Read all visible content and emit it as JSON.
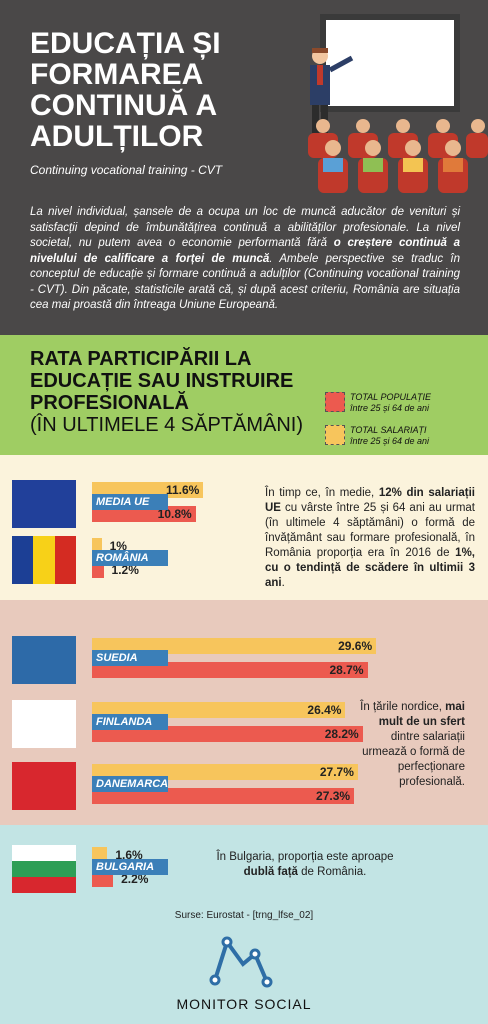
{
  "header": {
    "title_lines": [
      "EDUCAȚIA ȘI",
      "FORMAREA",
      "CONTINUĂ A",
      "ADULȚILOR"
    ],
    "subtitle": "Continuing vocational training - CVT",
    "intro": [
      {
        "text": "La nivel individual, șansele de a ocupa un loc de muncă aducător de venituri și satisfacții depind de îmbunătățirea continuă a abilităților profesionale. La nivel societal, nu putem avea o economie performantă fără ",
        "bold": false
      },
      {
        "text": "o creștere continuă a nivelului de calificare a forței de muncă",
        "bold": true
      },
      {
        "text": ". Ambele perspective se traduc în conceptul de educație și formare continuă a adulților (Continuing vocational training - CVT). Din păcate, statisticile arată că, și după acest criteriu, România are situația cea mai proastă din întreaga Uniune Europeană.",
        "bold": false
      }
    ]
  },
  "section": {
    "title_lines": [
      "RATA PARTICIPĂRII LA",
      "EDUCAȚIE SAU INSTRUIRE",
      "PROFESIONALĂ",
      "(ÎN ULTIMELE 4 SĂPTĂMÂNI)"
    ],
    "legend": [
      {
        "label": "TOTAL POPULAȚIE",
        "sublabel": "între 25 și 64 de ani",
        "color": "#ec5a4f"
      },
      {
        "label": "TOTAL SALARIAȚI",
        "sublabel": "între 25 și 64 de ani",
        "color": "#f7c55c"
      }
    ]
  },
  "groups": [
    {
      "countries": [
        {
          "name": "MEDIA UE",
          "values": [
            10.8,
            11.6
          ],
          "value_labels": [
            "10.8%",
            "11.6%"
          ]
        },
        {
          "name": "ROMÂNIA",
          "values": [
            1.2,
            1
          ],
          "value_labels": [
            "1.2%",
            "1%"
          ]
        }
      ],
      "note": [
        {
          "text": "În timp ce, în medie, ",
          "bold": false
        },
        {
          "text": "12% din salariații UE",
          "bold": true
        },
        {
          "text": " cu vârste între 25 și 64 ani au urmat (în ultimele 4 săptămâni) o formă de învățământ sau formare profesională, în România proporția era în 2016 de ",
          "bold": false
        },
        {
          "text": "1%, cu o tendință de scădere în ultimii 3 ani",
          "bold": true
        },
        {
          "text": ".",
          "bold": false
        }
      ]
    },
    {
      "countries": [
        {
          "name": "SUEDIA",
          "values": [
            28.7,
            29.6
          ],
          "value_labels": [
            "28.7%",
            "29.6%"
          ]
        },
        {
          "name": "FINLANDA",
          "values": [
            28.2,
            26.4
          ],
          "value_labels": [
            "28.2%",
            "26.4%"
          ]
        },
        {
          "name": "DANEMARCA",
          "values": [
            27.3,
            27.7
          ],
          "value_labels": [
            "27.3%",
            "27.7%"
          ]
        }
      ],
      "note": [
        {
          "text": "În țările nordice, ",
          "bold": false
        },
        {
          "text": "mai mult de un sfert",
          "bold": true
        },
        {
          "text": " dintre salariații urmează o formă de perfecționare profesională.",
          "bold": false
        }
      ]
    },
    {
      "countries": [
        {
          "name": "BULGARIA",
          "values": [
            2.2,
            1.6
          ],
          "value_labels": [
            "2.2%",
            "1.6%"
          ]
        }
      ],
      "note": [
        {
          "text": "În Bulgaria, proporția este aproape ",
          "bold": false
        },
        {
          "text": "dublă față",
          "bold": true
        },
        {
          "text": " de România.",
          "bold": false
        }
      ]
    }
  ],
  "source": "Surse: Eurostat - [trng_lfse_02]",
  "brand": "MONITOR SOCIAL"
}
